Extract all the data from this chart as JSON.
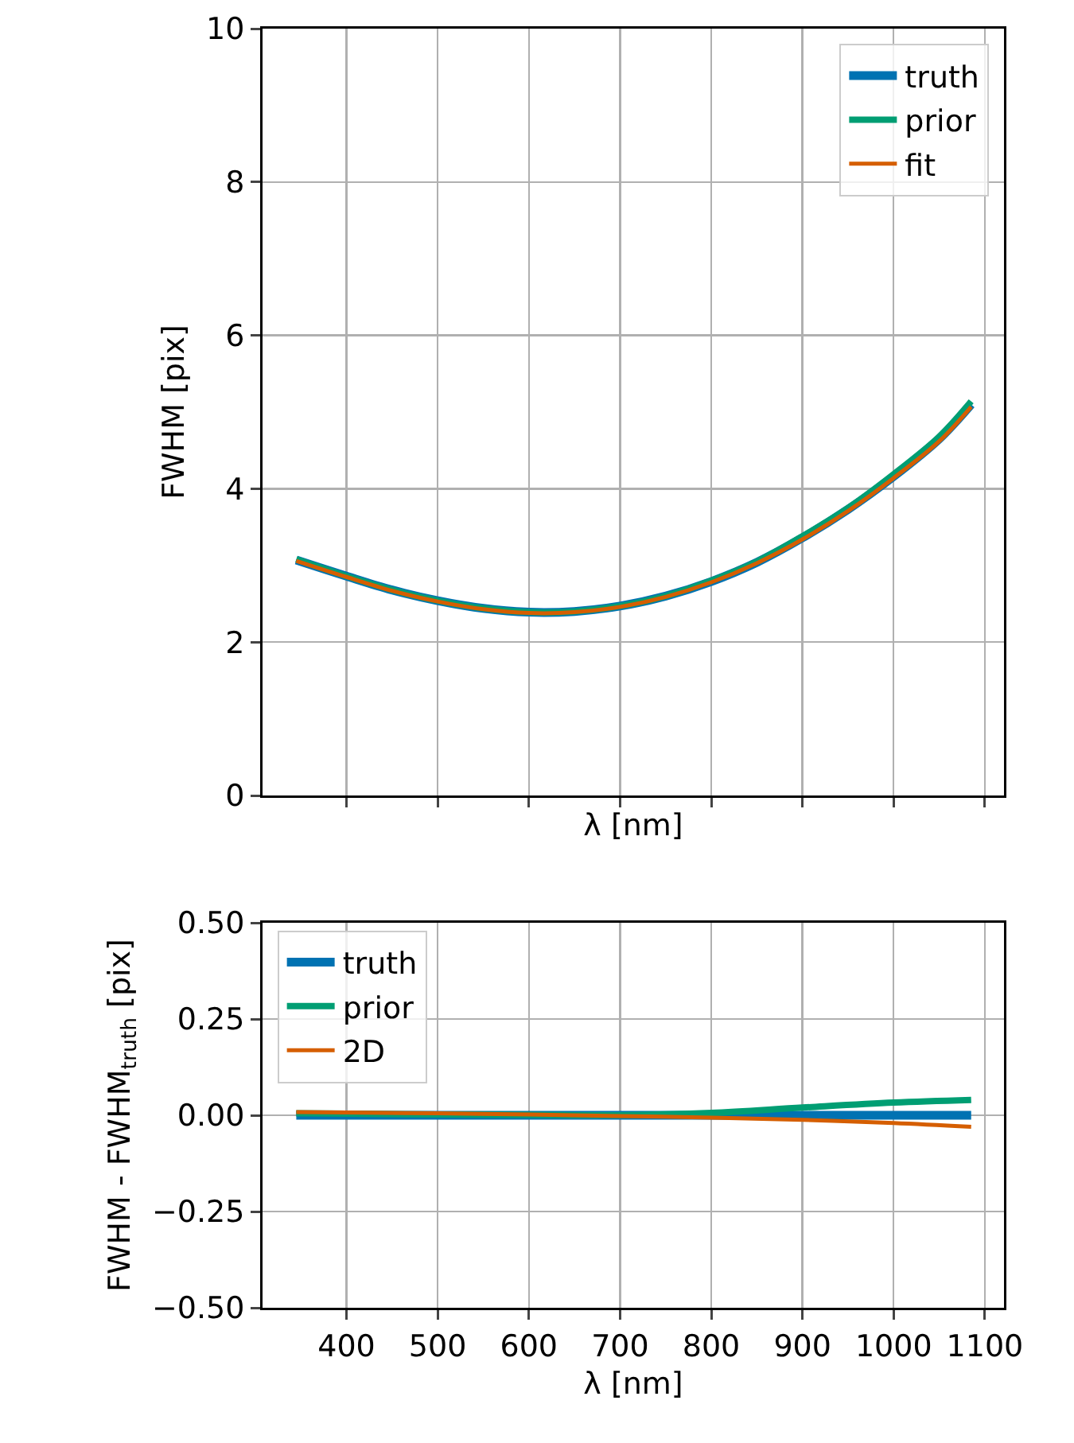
{
  "chart_data": [
    {
      "type": "line",
      "xlabel": "λ [nm]",
      "ylabel": "FWHM [pix]",
      "xlim": [
        308,
        1121
      ],
      "xticks": [
        400,
        500,
        600,
        700,
        800,
        900,
        1000,
        1100
      ],
      "ylim": [
        0,
        10
      ],
      "yticks": [
        0,
        2,
        4,
        6,
        8,
        10
      ],
      "grid": true,
      "legend": "top right",
      "tick_labels": "y",
      "x": [
        345,
        400,
        450,
        500,
        550,
        600,
        650,
        700,
        750,
        800,
        850,
        900,
        950,
        1000,
        1050,
        1085
      ],
      "series": [
        {
          "name": "truth",
          "color": "#0072b2",
          "values": [
            3.07,
            2.86,
            2.68,
            2.54,
            2.44,
            2.39,
            2.4,
            2.47,
            2.6,
            2.79,
            3.04,
            3.36,
            3.73,
            4.16,
            4.65,
            5.1
          ]
        },
        {
          "name": "prior",
          "color": "#009e73",
          "values": [
            3.08,
            2.86,
            2.68,
            2.54,
            2.44,
            2.39,
            2.4,
            2.47,
            2.6,
            2.8,
            3.05,
            3.38,
            3.75,
            4.19,
            4.68,
            5.14
          ]
        },
        {
          "name": "fit",
          "color": "#d55e00",
          "values": [
            3.06,
            2.85,
            2.67,
            2.53,
            2.43,
            2.38,
            2.39,
            2.46,
            2.59,
            2.78,
            3.03,
            3.34,
            3.71,
            4.14,
            4.62,
            5.07
          ]
        }
      ]
    },
    {
      "type": "line",
      "xlabel": "λ [nm]",
      "ylabel": "FWHM - FWHM$_{truth}$ [pix]",
      "xlim": [
        308,
        1121
      ],
      "xticks": [
        400,
        500,
        600,
        700,
        800,
        900,
        1000,
        1100
      ],
      "ylim": [
        -0.5,
        0.5
      ],
      "yticks": [
        {
          "value": -0.5,
          "label": "−0.50"
        },
        {
          "value": -0.25,
          "label": "−0.25"
        },
        {
          "value": 0,
          "label": "0.00"
        },
        {
          "value": 0.25,
          "label": "0.25"
        },
        {
          "value": 0.5,
          "label": "0.50"
        }
      ],
      "grid": true,
      "legend": "top left",
      "x": [
        345,
        400,
        500,
        600,
        700,
        800,
        900,
        1000,
        1085
      ],
      "series": [
        {
          "name": "truth",
          "color": "#0072b2",
          "values": [
            0,
            0,
            0,
            0,
            0,
            0,
            0,
            0,
            0
          ]
        },
        {
          "name": "prior",
          "color": "#009e73",
          "values": [
            0.005,
            0.004,
            0.002,
            0.001,
            0,
            0.006,
            0.02,
            0.033,
            0.04
          ]
        },
        {
          "name": "2D",
          "color": "#d55e00",
          "values": [
            0.008,
            0.007,
            0.005,
            0.002,
            -0.002,
            -0.006,
            -0.012,
            -0.02,
            -0.03
          ]
        }
      ]
    }
  ]
}
